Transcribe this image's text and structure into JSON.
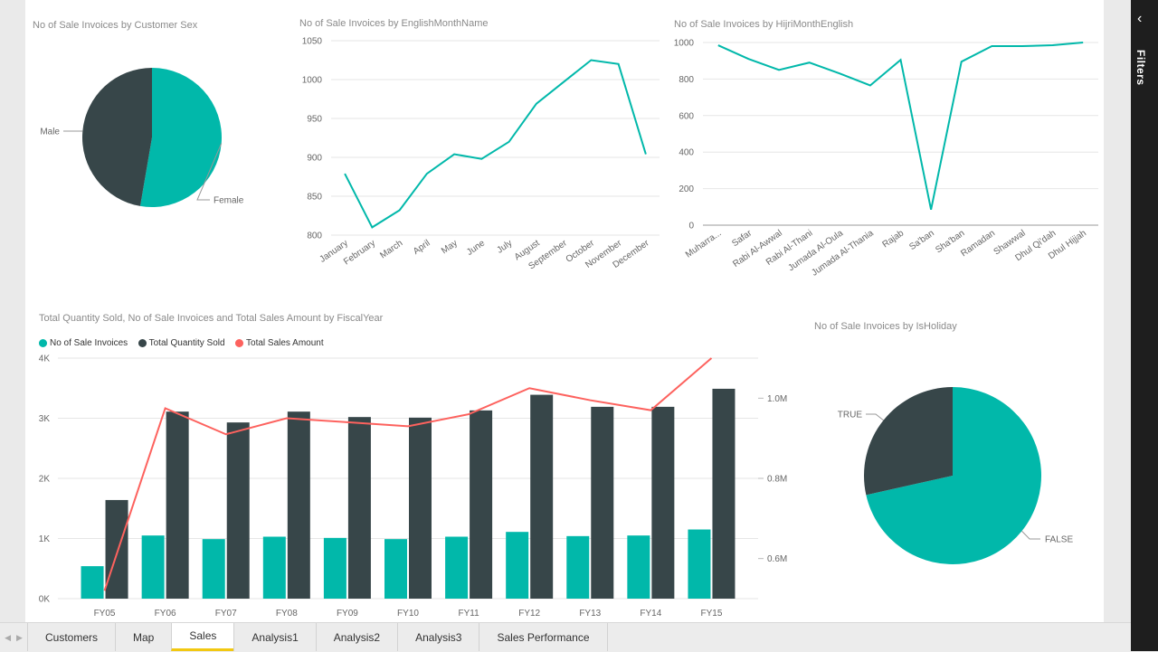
{
  "colors": {
    "teal": "#01b8aa",
    "dark": "#374649",
    "red": "#fd625e",
    "grid": "#e6e6e6",
    "active_tab_underline": "#f2c811"
  },
  "visuals": {
    "pie_sex": {
      "title": "No of Sale Invoices by Customer Sex",
      "chart_data": {
        "type": "pie",
        "slices": [
          {
            "label": "Female",
            "value": 52.7,
            "color": "#01b8aa"
          },
          {
            "label": "Male",
            "value": 47.3,
            "color": "#374649"
          }
        ]
      }
    },
    "line_month": {
      "title": "No of Sale Invoices by EnglishMonthName",
      "chart_data": {
        "type": "line",
        "categories": [
          "January",
          "February",
          "March",
          "April",
          "May",
          "June",
          "July",
          "August",
          "September",
          "October",
          "November",
          "December"
        ],
        "values": [
          879,
          810,
          832,
          879,
          904,
          898,
          920,
          969,
          997,
          1025,
          1020,
          904
        ],
        "ylim": [
          800,
          1050
        ],
        "yticks": [
          "800",
          "850",
          "900",
          "950",
          "1000",
          "1050"
        ],
        "ytick_values": [
          800,
          850,
          900,
          950,
          1000,
          1050
        ]
      }
    },
    "line_hijri": {
      "title": "No of Sale Invoices by HijriMonthEnglish",
      "chart_data": {
        "type": "line",
        "categories": [
          "Muharra...",
          "Safar",
          "Rabi Al-Awwal",
          "Rabi Al-Thani",
          "Jumada Al-Oula",
          "Jumada Al-Thania",
          "Rajab",
          "Sa'ban",
          "Sha'ban",
          "Ramadan",
          "Shawwal",
          "Dhul Qi'dah",
          "Dhul Hijjah"
        ],
        "values": [
          985,
          910,
          850,
          890,
          830,
          765,
          905,
          85,
          895,
          980,
          980,
          985,
          1000
        ],
        "ylim": [
          0,
          1000
        ],
        "yticks": [
          "0",
          "200",
          "400",
          "600",
          "800",
          "1000"
        ],
        "ytick_values": [
          0,
          200,
          400,
          600,
          800,
          1000
        ]
      }
    },
    "combo": {
      "title": "Total Quantity Sold, No of Sale Invoices and Total Sales Amount by FiscalYear",
      "legend": [
        {
          "label": "No of Sale Invoices",
          "color": "#01b8aa"
        },
        {
          "label": "Total Quantity Sold",
          "color": "#374649"
        },
        {
          "label": "Total Sales Amount",
          "color": "#fd625e"
        }
      ],
      "chart_data": {
        "type": "bar",
        "categories": [
          "FY05",
          "FY06",
          "FY07",
          "FY08",
          "FY09",
          "FY10",
          "FY11",
          "FY12",
          "FY13",
          "FY14",
          "FY15"
        ],
        "series": [
          {
            "name": "No of Sale Invoices",
            "values": [
              540,
              1050,
              990,
              1030,
              1010,
              990,
              1030,
              1110,
              1040,
              1050,
              1150
            ]
          },
          {
            "name": "Total Quantity Sold",
            "values": [
              1640,
              3110,
              2930,
              3110,
              3020,
              3010,
              3130,
              3390,
              3190,
              3190,
              3490
            ]
          },
          {
            "name": "Total Sales Amount",
            "values": [
              520000,
              975000,
              910000,
              950000,
              940000,
              930000,
              960000,
              1025000,
              995000,
              970000,
              1100000
            ],
            "axis": "right"
          }
        ],
        "ylim": [
          0,
          4000
        ],
        "yticks": [
          "0K",
          "1K",
          "2K",
          "3K",
          "4K"
        ],
        "ytick_values": [
          0,
          1000,
          2000,
          3000,
          4000
        ],
        "y2lim": [
          500000,
          1100000
        ],
        "y2ticks": [
          "0.6M",
          "0.8M",
          "1.0M"
        ],
        "y2tick_values": [
          600000,
          800000,
          1000000
        ]
      }
    },
    "pie_holiday": {
      "title": "No of Sale Invoices by IsHoliday",
      "chart_data": {
        "type": "pie",
        "slices": [
          {
            "label": "FALSE",
            "value": 71.5,
            "color": "#01b8aa"
          },
          {
            "label": "TRUE",
            "value": 28.5,
            "color": "#374649"
          }
        ]
      }
    }
  },
  "filters_pane": {
    "label": "Filters",
    "chevron": "‹",
    "icon": "chevron-left-icon"
  },
  "tab_nav": {
    "prev": "◀",
    "next": "▶"
  },
  "tabs": [
    "Customers",
    "Map",
    "Sales",
    "Analysis1",
    "Analysis2",
    "Analysis3",
    "Sales Performance"
  ],
  "active_tab": "Sales"
}
